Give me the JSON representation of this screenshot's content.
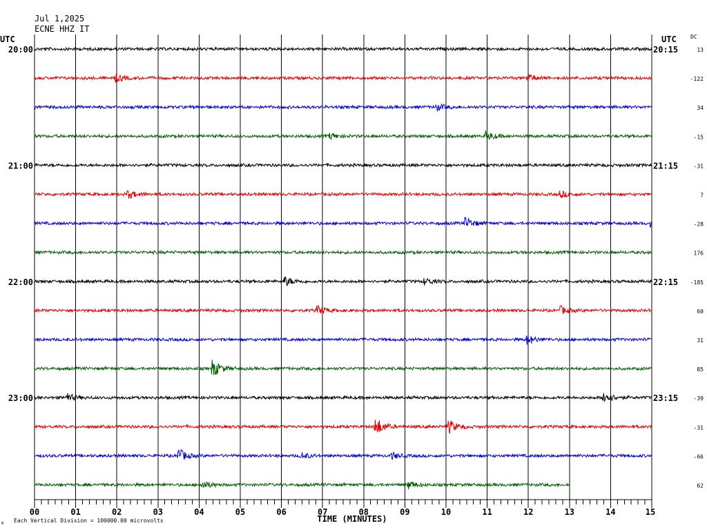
{
  "header": {
    "date": "Jul 1,2025",
    "station": "ECNE HHZ IT",
    "utc_left": "UTC",
    "utc_right": "UTC",
    "dc_label": "DC"
  },
  "footer": {
    "xaxis_label": "TIME (MINUTES)",
    "scale_note": "Each Vertical Division = 100000.00 microvolts",
    "corner_mark": "M"
  },
  "colors": {
    "trace_cycle": [
      "#000000",
      "#e00000",
      "#0000d0",
      "#006000"
    ],
    "grid": "#000000",
    "background": "#ffffff"
  },
  "chart_data": {
    "type": "line",
    "subtype": "helicorder",
    "x": {
      "label": "TIME (MINUTES)",
      "range": [
        0,
        15
      ],
      "ticks": [
        "00",
        "01",
        "02",
        "03",
        "04",
        "05",
        "06",
        "07",
        "08",
        "09",
        "10",
        "11",
        "12",
        "13",
        "14",
        "15"
      ]
    },
    "vertical_gridlines_every_minute": true,
    "rows": [
      {
        "left": "20:00",
        "right": "20:15",
        "dc": "13",
        "end_min": 15,
        "events": []
      },
      {
        "left": "",
        "right": "",
        "dc": "-122",
        "end_min": 15,
        "events": [
          {
            "t": 2.0,
            "amp": 0.5
          },
          {
            "t": 12.0,
            "amp": 0.5
          }
        ]
      },
      {
        "left": "",
        "right": "",
        "dc": "34",
        "end_min": 15,
        "events": [
          {
            "t": 9.8,
            "amp": 0.4
          }
        ]
      },
      {
        "left": "",
        "right": "",
        "dc": "-15",
        "end_min": 15,
        "events": [
          {
            "t": 7.2,
            "amp": 0.4
          },
          {
            "t": 11.0,
            "amp": 0.6
          }
        ]
      },
      {
        "left": "21:00",
        "right": "21:15",
        "dc": "-31",
        "end_min": 15,
        "events": []
      },
      {
        "left": "",
        "right": "",
        "dc": "7",
        "end_min": 15,
        "events": [
          {
            "t": 2.3,
            "amp": 0.5
          },
          {
            "t": 12.8,
            "amp": 0.4
          }
        ]
      },
      {
        "left": "",
        "right": "",
        "dc": "-28",
        "end_min": 15,
        "events": [
          {
            "t": 10.5,
            "amp": 0.7
          },
          {
            "t": 15.0,
            "amp": 0.4
          }
        ]
      },
      {
        "left": "",
        "right": "",
        "dc": "176",
        "end_min": 15,
        "events": []
      },
      {
        "left": "22:00",
        "right": "22:15",
        "dc": "-185",
        "end_min": 15,
        "events": [
          {
            "t": 6.1,
            "amp": 0.6
          },
          {
            "t": 9.5,
            "amp": 0.4
          }
        ]
      },
      {
        "left": "",
        "right": "",
        "dc": "60",
        "end_min": 15,
        "events": [
          {
            "t": 6.9,
            "amp": 0.6
          },
          {
            "t": 12.8,
            "amp": 0.5
          }
        ]
      },
      {
        "left": "",
        "right": "",
        "dc": "31",
        "end_min": 15,
        "events": [
          {
            "t": 12.0,
            "amp": 0.6
          }
        ]
      },
      {
        "left": "",
        "right": "",
        "dc": "85",
        "end_min": 15,
        "events": [
          {
            "t": 4.35,
            "amp": 1.1
          }
        ]
      },
      {
        "left": "23:00",
        "right": "23:15",
        "dc": "-39",
        "end_min": 15,
        "events": [
          {
            "t": 0.8,
            "amp": 0.5
          },
          {
            "t": 13.85,
            "amp": 0.9
          }
        ]
      },
      {
        "left": "",
        "right": "",
        "dc": "-31",
        "end_min": 15,
        "events": [
          {
            "t": 8.3,
            "amp": 1.3
          },
          {
            "t": 10.1,
            "amp": 0.8
          }
        ]
      },
      {
        "left": "",
        "right": "",
        "dc": "-66",
        "end_min": 15,
        "events": [
          {
            "t": 3.5,
            "amp": 1.0
          },
          {
            "t": 6.5,
            "amp": 0.4
          },
          {
            "t": 8.7,
            "amp": 0.4
          }
        ]
      },
      {
        "left": "",
        "right": "",
        "dc": "62",
        "end_min": 13,
        "events": [
          {
            "t": 4.1,
            "amp": 0.5
          },
          {
            "t": 9.1,
            "amp": 0.5
          }
        ]
      }
    ]
  }
}
